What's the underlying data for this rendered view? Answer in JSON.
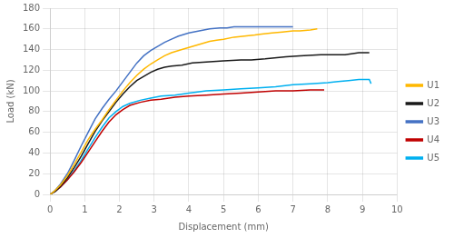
{
  "chart_data": {
    "type": "line",
    "xlabel": "Displacement (mm)",
    "ylabel": "Load (kN)",
    "xlim": [
      0,
      10
    ],
    "ylim": [
      0,
      180
    ],
    "xticks": [
      0,
      1,
      2,
      3,
      4,
      5,
      6,
      7,
      8,
      9,
      10
    ],
    "yticks": [
      0,
      20,
      40,
      60,
      80,
      100,
      120,
      140,
      160,
      180
    ],
    "grid": true,
    "legend": "right",
    "series": [
      {
        "name": "U1",
        "color": "#FFB800",
        "x": [
          0,
          0.05,
          0.15,
          0.3,
          0.5,
          0.7,
          0.9,
          1.1,
          1.3,
          1.5,
          1.7,
          1.9,
          2.1,
          2.3,
          2.5,
          2.7,
          2.9,
          3.1,
          3.3,
          3.5,
          3.8,
          4.0,
          4.2,
          4.4,
          4.6,
          4.8,
          5.0,
          5.3,
          5.6,
          5.9,
          6.1,
          6.4,
          6.7,
          7.0,
          7.2,
          7.5,
          7.7
        ],
        "values": [
          0,
          1,
          4,
          9,
          18,
          29,
          41,
          53,
          63,
          72,
          82,
          91,
          100,
          108,
          115,
          121,
          126,
          130,
          134,
          137,
          140,
          142,
          144,
          146,
          148,
          149,
          150,
          152,
          153,
          154,
          155,
          156,
          157,
          158,
          158,
          159,
          160
        ]
      },
      {
        "name": "U2",
        "color": "#1a1a1a",
        "x": [
          0,
          0.05,
          0.15,
          0.3,
          0.5,
          0.7,
          0.9,
          1.1,
          1.3,
          1.5,
          1.7,
          1.9,
          2.1,
          2.3,
          2.5,
          2.7,
          2.9,
          3.1,
          3.3,
          3.5,
          3.8,
          4.1,
          4.5,
          5.0,
          5.5,
          5.8,
          6.2,
          6.8,
          7.2,
          7.8,
          8.1,
          8.5,
          8.9,
          9.2
        ],
        "values": [
          0,
          1,
          3,
          8,
          16,
          26,
          37,
          49,
          61,
          71,
          80,
          89,
          97,
          104,
          110,
          114,
          118,
          121,
          123,
          124,
          125,
          127,
          128,
          129,
          130,
          130,
          131,
          133,
          134,
          135,
          135,
          135,
          137,
          137
        ]
      },
      {
        "name": "U3",
        "color": "#4472C4",
        "x": [
          0,
          0.05,
          0.15,
          0.3,
          0.5,
          0.7,
          0.9,
          1.1,
          1.3,
          1.5,
          1.7,
          1.9,
          2.1,
          2.3,
          2.5,
          2.7,
          2.9,
          3.1,
          3.3,
          3.5,
          3.7,
          4.0,
          4.3,
          4.6,
          4.9,
          5.1,
          5.3,
          5.6,
          5.9,
          6.1,
          6.4,
          6.7,
          7.0
        ],
        "values": [
          0,
          1,
          4,
          10,
          20,
          33,
          47,
          60,
          73,
          83,
          92,
          100,
          109,
          118,
          127,
          134,
          139,
          143,
          147,
          150,
          153,
          156,
          158,
          160,
          161,
          161,
          162,
          162,
          162,
          162,
          162,
          162,
          162
        ]
      },
      {
        "name": "U4",
        "color": "#C00000",
        "x": [
          0,
          0.05,
          0.15,
          0.3,
          0.5,
          0.7,
          0.9,
          1.1,
          1.3,
          1.5,
          1.7,
          1.9,
          2.1,
          2.3,
          2.6,
          2.9,
          3.2,
          3.6,
          4.0,
          4.5,
          5.0,
          5.5,
          6.0,
          6.5,
          7.0,
          7.5,
          7.9
        ],
        "values": [
          0,
          1,
          3,
          7,
          14,
          22,
          31,
          41,
          51,
          61,
          70,
          77,
          82,
          86,
          89,
          91,
          92,
          94,
          95,
          96,
          97,
          98,
          99,
          100,
          100,
          101,
          101
        ]
      },
      {
        "name": "U5",
        "color": "#00B0F0",
        "x": [
          0,
          0.05,
          0.15,
          0.3,
          0.5,
          0.7,
          0.9,
          1.1,
          1.3,
          1.5,
          1.7,
          1.9,
          2.1,
          2.3,
          2.6,
          2.9,
          3.2,
          3.6,
          4.0,
          4.5,
          5.0,
          5.5,
          6.0,
          6.5,
          7.0,
          7.5,
          8.0,
          8.3,
          8.6,
          8.9,
          9.2,
          9.25
        ],
        "values": [
          0,
          1,
          3,
          7,
          14,
          23,
          33,
          44,
          55,
          65,
          74,
          80,
          85,
          88,
          91,
          93,
          95,
          96,
          98,
          100,
          101,
          102,
          103,
          104,
          106,
          107,
          108,
          109,
          110,
          111,
          111,
          107
        ]
      }
    ]
  }
}
